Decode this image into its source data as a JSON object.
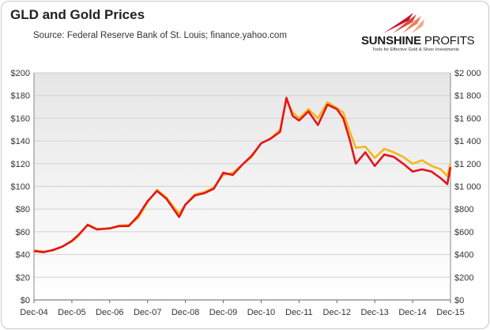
{
  "header": {
    "title": "GLD and Gold Prices",
    "source": "Source: Federal Reserve Bank of St. Louis; finance.yahoo.com"
  },
  "logo": {
    "name_bold": "SUNSHINE",
    "name_light": " PROFITS",
    "tagline": "Tools for Effective Gold & Silver Investments"
  },
  "colors": {
    "gld": "#e5141c",
    "gold": "#f3b81c",
    "logo_red": "#c8102e"
  },
  "chart_data": {
    "type": "line",
    "grid": true,
    "legend": "none",
    "x_ticks": [
      "Dec-04",
      "Dec-05",
      "Dec-06",
      "Dec-07",
      "Dec-08",
      "Dec-09",
      "Dec-10",
      "Dec-11",
      "Dec-12",
      "Dec-13",
      "Dec-14",
      "Dec-15"
    ],
    "x_range": [
      "2004-12",
      "2015-12"
    ],
    "y_left": {
      "ticks": [
        "$0",
        "$20",
        "$40",
        "$60",
        "$80",
        "$100",
        "$120",
        "$140",
        "$160",
        "$180",
        "$200"
      ],
      "range": [
        0,
        200
      ]
    },
    "y_right": {
      "ticks": [
        "$0",
        "$200",
        "$400",
        "$600",
        "$800",
        "$1 000",
        "$1 200",
        "$1 400",
        "$1 600",
        "$1 800",
        "$2 000"
      ],
      "range": [
        0,
        2000
      ]
    },
    "series": [
      {
        "axis": "left",
        "x": [
          "2004-12",
          "2005-03",
          "2005-06",
          "2005-09",
          "2005-12",
          "2006-02",
          "2006-05",
          "2006-08",
          "2006-12",
          "2007-03",
          "2007-06",
          "2007-09",
          "2007-12",
          "2008-03",
          "2008-06",
          "2008-10",
          "2008-12",
          "2009-03",
          "2009-06",
          "2009-09",
          "2009-12",
          "2010-03",
          "2010-06",
          "2010-09",
          "2010-12",
          "2011-03",
          "2011-06",
          "2011-08",
          "2011-10",
          "2011-12",
          "2012-03",
          "2012-06",
          "2012-09",
          "2012-12",
          "2013-02",
          "2013-04",
          "2013-06",
          "2013-09",
          "2013-12",
          "2014-03",
          "2014-06",
          "2014-09",
          "2014-12",
          "2015-03",
          "2015-06",
          "2015-09",
          "2015-11",
          "2015-12"
        ],
        "values": [
          43,
          42,
          44,
          47,
          52,
          57,
          66,
          62,
          63,
          65,
          65,
          74,
          87,
          96,
          89,
          73,
          84,
          92,
          94,
          98,
          112,
          110,
          119,
          127,
          138,
          142,
          148,
          178,
          162,
          158,
          166,
          154,
          172,
          168,
          160,
          142,
          120,
          130,
          118,
          128,
          126,
          120,
          113,
          115,
          113,
          107,
          102,
          117
        ]
      },
      {
        "axis": "right",
        "x": [
          "2004-12",
          "2005-03",
          "2005-06",
          "2005-09",
          "2005-12",
          "2006-02",
          "2006-05",
          "2006-08",
          "2006-12",
          "2007-03",
          "2007-06",
          "2007-09",
          "2007-12",
          "2008-03",
          "2008-06",
          "2008-10",
          "2008-12",
          "2009-03",
          "2009-06",
          "2009-09",
          "2009-12",
          "2010-03",
          "2010-06",
          "2010-09",
          "2010-12",
          "2011-03",
          "2011-06",
          "2011-08",
          "2011-10",
          "2011-12",
          "2012-03",
          "2012-06",
          "2012-09",
          "2012-12",
          "2013-02",
          "2013-04",
          "2013-06",
          "2013-09",
          "2013-12",
          "2014-03",
          "2014-06",
          "2014-09",
          "2014-12",
          "2015-03",
          "2015-06",
          "2015-09",
          "2015-11",
          "2015-12"
        ],
        "values": [
          440,
          425,
          435,
          470,
          515,
          560,
          665,
          625,
          630,
          655,
          660,
          720,
          860,
          970,
          900,
          760,
          840,
          930,
          950,
          990,
          1100,
          1120,
          1190,
          1260,
          1380,
          1420,
          1500,
          1760,
          1650,
          1600,
          1680,
          1600,
          1740,
          1690,
          1650,
          1490,
          1340,
          1350,
          1250,
          1330,
          1300,
          1260,
          1200,
          1230,
          1180,
          1150,
          1090,
          1200
        ]
      }
    ]
  }
}
